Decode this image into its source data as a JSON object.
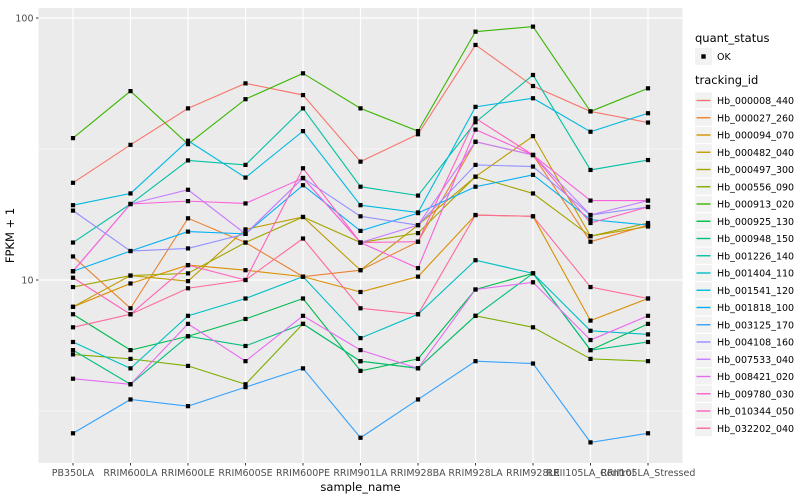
{
  "figure": {
    "background": "#ffffff",
    "panel_background": "#EBEBEB",
    "gridline_color": "#FFFFFF",
    "tick_label_color": "#4D4D4D",
    "axis_title_color": "#000000",
    "point_color": "#000000"
  },
  "legend": {
    "quant_status_title": "quant_status",
    "quant_status_items": [
      {
        "label": "OK",
        "marker": "black-point"
      }
    ],
    "tracking_id_title": "tracking_id",
    "key_background": "#F2F2F2"
  },
  "chart_data": {
    "type": "line",
    "title": "",
    "xlabel": "sample_name",
    "ylabel": "FPKM + 1",
    "y_scale": "log10",
    "y_ticks": [
      10,
      100
    ],
    "y_tick_labels": [
      "10",
      "100"
    ],
    "y_minor": [
      3.1623,
      31.623
    ],
    "ylim": [
      2.0,
      108
    ],
    "grid": true,
    "legend_position": "right",
    "x_categories": [
      "PB350LA",
      "RRIM600LA",
      "RRIM600LE",
      "RRIM600SE",
      "RRIM600PE",
      "RRIM901LA",
      "RRIM928BA",
      "RRIM928LA",
      "RRIM928LE",
      "RRII105LA_Control",
      "RRII105LA_Stressed"
    ],
    "series": [
      {
        "name": "Hb_000008_440",
        "color": "#F8766D",
        "values": [
          23.5,
          32.8,
          45.2,
          56.3,
          50.8,
          28.3,
          36.0,
          78.9,
          55.0,
          44.0,
          39.9
        ]
      },
      {
        "name": "Hb_000027_260",
        "color": "#EA8331",
        "values": [
          12.3,
          7.8,
          17.2,
          13.9,
          10.3,
          10.9,
          14.0,
          33.7,
          30.0,
          14.0,
          16.2
        ]
      },
      {
        "name": "Hb_000094_070",
        "color": "#D89000",
        "values": [
          7.9,
          9.7,
          11.4,
          10.9,
          10.3,
          9.0,
          10.3,
          17.7,
          17.5,
          7.0,
          8.5
        ]
      },
      {
        "name": "Hb_000482_040",
        "color": "#C09B00",
        "values": [
          7.9,
          10.4,
          9.9,
          15.6,
          17.4,
          10.9,
          16.2,
          24.8,
          35.4,
          14.7,
          16.0
        ]
      },
      {
        "name": "Hb_000497_300",
        "color": "#A3A500",
        "values": [
          9.4,
          10.4,
          10.6,
          13.9,
          17.4,
          13.9,
          15.1,
          24.8,
          21.4,
          14.7,
          16.5
        ]
      },
      {
        "name": "Hb_000556_090",
        "color": "#7CAE00",
        "values": [
          5.2,
          5.0,
          4.7,
          4.0,
          6.8,
          4.9,
          4.6,
          7.3,
          6.6,
          5.0,
          4.9
        ]
      },
      {
        "name": "Hb_000913_020",
        "color": "#39B600",
        "values": [
          34.8,
          52.6,
          33.0,
          49.0,
          61.5,
          45.2,
          37.0,
          88.7,
          92.7,
          44.0,
          53.9
        ]
      },
      {
        "name": "Hb_000925_130",
        "color": "#00BB4E",
        "values": [
          7.4,
          5.4,
          6.1,
          7.1,
          8.5,
          4.5,
          5.0,
          9.2,
          10.6,
          5.4,
          6.8
        ]
      },
      {
        "name": "Hb_000948_150",
        "color": "#00BF7D",
        "values": [
          5.4,
          4.0,
          6.1,
          5.6,
          6.8,
          4.9,
          4.6,
          7.3,
          10.6,
          5.4,
          5.8
        ]
      },
      {
        "name": "Hb_001226_140",
        "color": "#00C1A3",
        "values": [
          13.9,
          19.5,
          28.6,
          27.5,
          45.2,
          22.7,
          21.0,
          40.0,
          60.6,
          26.3,
          28.7
        ]
      },
      {
        "name": "Hb_001404_110",
        "color": "#00BFC4",
        "values": [
          5.8,
          4.6,
          7.3,
          8.5,
          10.3,
          6.0,
          7.4,
          11.9,
          10.6,
          6.4,
          6.2
        ]
      },
      {
        "name": "Hb_001541_120",
        "color": "#00BAE0",
        "values": [
          19.3,
          21.4,
          34.0,
          24.6,
          37.0,
          19.3,
          18.1,
          45.8,
          49.4,
          36.8,
          43.3
        ]
      },
      {
        "name": "Hb_001818_100",
        "color": "#00B0F6",
        "values": [
          10.8,
          12.9,
          15.3,
          15.0,
          23.0,
          15.4,
          18.0,
          22.7,
          25.2,
          17.0,
          16.2
        ]
      },
      {
        "name": "Hb_003125_170",
        "color": "#35A2FF",
        "values": [
          2.6,
          3.5,
          3.3,
          3.9,
          4.6,
          2.5,
          3.5,
          4.9,
          4.8,
          2.4,
          2.6
        ]
      },
      {
        "name": "Hb_004108_160",
        "color": "#9590FF",
        "values": [
          18.4,
          12.9,
          13.2,
          15.0,
          24.5,
          17.5,
          16.2,
          27.5,
          27.1,
          17.7,
          19.0
        ]
      },
      {
        "name": "Hb_007533_040",
        "color": "#C77CFF",
        "values": [
          10.8,
          19.5,
          22.1,
          15.0,
          24.5,
          13.9,
          16.2,
          33.7,
          30.0,
          17.7,
          20.1
        ]
      },
      {
        "name": "Hb_008421_020",
        "color": "#E76BF3",
        "values": [
          4.2,
          4.0,
          6.8,
          4.9,
          7.3,
          5.4,
          4.6,
          9.2,
          9.8,
          5.9,
          7.3
        ]
      },
      {
        "name": "Hb_009780_030",
        "color": "#FA62DB",
        "values": [
          10.8,
          19.5,
          20.0,
          19.6,
          24.5,
          13.9,
          11.1,
          37.5,
          30.0,
          20.1,
          20.1
        ]
      },
      {
        "name": "Hb_010344_050",
        "color": "#FF62BC",
        "values": [
          10.2,
          7.4,
          11.4,
          10.0,
          26.7,
          13.9,
          14.0,
          41.4,
          30.0,
          16.5,
          19.0
        ]
      },
      {
        "name": "Hb_032202_040",
        "color": "#FF6A98",
        "values": [
          6.6,
          7.4,
          9.3,
          10.0,
          14.4,
          7.8,
          7.4,
          17.7,
          17.5,
          9.4,
          8.5
        ]
      }
    ]
  }
}
